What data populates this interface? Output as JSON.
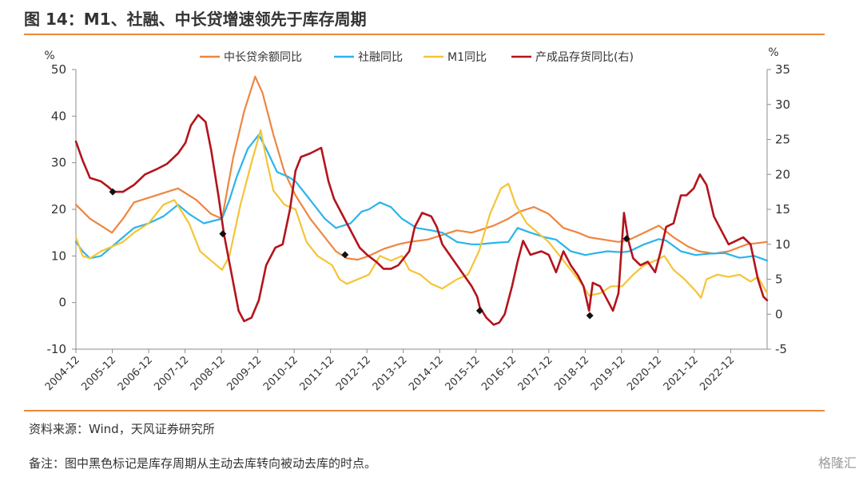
{
  "figure_title": "图 14：M1、社融、中长贷增速领先于库存周期",
  "source": "资料来源：Wind，天风证券研究所",
  "note": "备注：图中黑色标记是库存周期从主动去库转向被动去库的时点。",
  "watermark": "格隆汇",
  "colors": {
    "rule": "#e9893b",
    "中长贷余额同比": "#ee8640",
    "社融同比": "#2ab4ec",
    "M1同比": "#f5c436",
    "产成品存货同比(右)": "#b3141c"
  },
  "chart_data": {
    "type": "line",
    "left_unit": "%",
    "right_unit": "%",
    "ylim": [
      -10,
      50
    ],
    "y_ticks": [
      -10,
      0,
      10,
      20,
      30,
      40,
      50
    ],
    "y2lim": [
      -5,
      35
    ],
    "y2_ticks": [
      -5,
      0,
      5,
      10,
      15,
      20,
      25,
      30,
      35
    ],
    "x_range": [
      2004.917,
      2023.75
    ],
    "x_tick_labels": [
      "2004-12",
      "2005-12",
      "2006-12",
      "2007-12",
      "2008-12",
      "2009-12",
      "2010-12",
      "2011-12",
      "2012-12",
      "2013-12",
      "2014-12",
      "2015-12",
      "2016-12",
      "2017-12",
      "2018-12",
      "2019-12",
      "2020-12",
      "2021-12",
      "2022-12"
    ],
    "legend_position": "top",
    "grid": false,
    "series": [
      {
        "name": "中长贷余额同比",
        "axis": "left",
        "points": [
          [
            2004.917,
            21
          ],
          [
            2005.3,
            18
          ],
          [
            2005.6,
            16.5
          ],
          [
            2005.9,
            15
          ],
          [
            2006.2,
            18
          ],
          [
            2006.5,
            21.5
          ],
          [
            2006.9,
            22.5
          ],
          [
            2007.3,
            23.5
          ],
          [
            2007.7,
            24.5
          ],
          [
            2008.2,
            22
          ],
          [
            2008.6,
            19
          ],
          [
            2008.9,
            18
          ],
          [
            2009.2,
            31
          ],
          [
            2009.5,
            41
          ],
          [
            2009.8,
            48.5
          ],
          [
            2010.0,
            45
          ],
          [
            2010.3,
            36
          ],
          [
            2010.6,
            28
          ],
          [
            2010.9,
            23
          ],
          [
            2011.3,
            18
          ],
          [
            2011.7,
            14
          ],
          [
            2012.0,
            11
          ],
          [
            2012.3,
            9.5
          ],
          [
            2012.6,
            9.2
          ],
          [
            2012.9,
            10
          ],
          [
            2013.3,
            11.5
          ],
          [
            2013.7,
            12.5
          ],
          [
            2014.0,
            13
          ],
          [
            2014.5,
            13.5
          ],
          [
            2014.9,
            14.5
          ],
          [
            2015.3,
            15.5
          ],
          [
            2015.7,
            15
          ],
          [
            2015.9,
            15.5
          ],
          [
            2016.3,
            16.5
          ],
          [
            2016.7,
            18
          ],
          [
            2017.0,
            19.5
          ],
          [
            2017.4,
            20.5
          ],
          [
            2017.8,
            19
          ],
          [
            2018.2,
            16
          ],
          [
            2018.6,
            15
          ],
          [
            2018.9,
            14
          ],
          [
            2019.3,
            13.5
          ],
          [
            2019.7,
            13
          ],
          [
            2020.0,
            13.5
          ],
          [
            2020.4,
            15
          ],
          [
            2020.8,
            16.5
          ],
          [
            2021.2,
            14
          ],
          [
            2021.6,
            12
          ],
          [
            2021.9,
            11
          ],
          [
            2022.3,
            10.5
          ],
          [
            2022.7,
            11
          ],
          [
            2023.2,
            12.5
          ],
          [
            2023.75,
            13
          ]
        ]
      },
      {
        "name": "社融同比",
        "axis": "left",
        "points": [
          [
            2004.917,
            13
          ],
          [
            2005.1,
            11
          ],
          [
            2005.3,
            9.5
          ],
          [
            2005.6,
            10
          ],
          [
            2005.9,
            12
          ],
          [
            2006.2,
            14
          ],
          [
            2006.5,
            16
          ],
          [
            2006.9,
            17
          ],
          [
            2007.3,
            18.5
          ],
          [
            2007.7,
            21
          ],
          [
            2008.0,
            19
          ],
          [
            2008.4,
            17
          ],
          [
            2008.9,
            18
          ],
          [
            2009.1,
            22
          ],
          [
            2009.3,
            27
          ],
          [
            2009.6,
            33
          ],
          [
            2009.9,
            36
          ],
          [
            2010.1,
            33
          ],
          [
            2010.4,
            28
          ],
          [
            2010.7,
            27
          ],
          [
            2010.9,
            26
          ],
          [
            2011.3,
            22
          ],
          [
            2011.7,
            18
          ],
          [
            2012.0,
            16
          ],
          [
            2012.4,
            17
          ],
          [
            2012.7,
            19.5
          ],
          [
            2012.9,
            20
          ],
          [
            2013.2,
            21.5
          ],
          [
            2013.5,
            20.5
          ],
          [
            2013.8,
            18
          ],
          [
            2014.2,
            16
          ],
          [
            2014.6,
            15.5
          ],
          [
            2014.9,
            15
          ],
          [
            2015.3,
            13
          ],
          [
            2015.7,
            12.5
          ],
          [
            2015.9,
            12.5
          ],
          [
            2016.3,
            12.8
          ],
          [
            2016.7,
            13
          ],
          [
            2016.95,
            16
          ],
          [
            2017.3,
            15
          ],
          [
            2017.7,
            14
          ],
          [
            2018.0,
            13.5
          ],
          [
            2018.4,
            11
          ],
          [
            2018.8,
            10.2
          ],
          [
            2019.0,
            10.5
          ],
          [
            2019.4,
            11
          ],
          [
            2019.8,
            10.8
          ],
          [
            2020.0,
            11
          ],
          [
            2020.4,
            12.5
          ],
          [
            2020.8,
            13.6
          ],
          [
            2021.0,
            13.3
          ],
          [
            2021.4,
            11
          ],
          [
            2021.8,
            10.2
          ],
          [
            2022.2,
            10.5
          ],
          [
            2022.6,
            10.6
          ],
          [
            2023.0,
            9.6
          ],
          [
            2023.4,
            10
          ],
          [
            2023.75,
            9
          ]
        ]
      },
      {
        "name": "M1同比",
        "axis": "left",
        "points": [
          [
            2004.917,
            14
          ],
          [
            2005.1,
            10
          ],
          [
            2005.3,
            9.5
          ],
          [
            2005.6,
            11
          ],
          [
            2005.9,
            12
          ],
          [
            2006.2,
            13
          ],
          [
            2006.5,
            15
          ],
          [
            2006.9,
            17
          ],
          [
            2007.3,
            21
          ],
          [
            2007.6,
            22
          ],
          [
            2008.0,
            17
          ],
          [
            2008.3,
            11
          ],
          [
            2008.6,
            9
          ],
          [
            2008.9,
            7
          ],
          [
            2009.1,
            10
          ],
          [
            2009.4,
            21
          ],
          [
            2009.7,
            30
          ],
          [
            2009.95,
            37
          ],
          [
            2010.1,
            31
          ],
          [
            2010.3,
            24
          ],
          [
            2010.6,
            21
          ],
          [
            2010.9,
            20
          ],
          [
            2011.2,
            13
          ],
          [
            2011.5,
            10
          ],
          [
            2011.9,
            8
          ],
          [
            2012.1,
            5
          ],
          [
            2012.3,
            4
          ],
          [
            2012.6,
            5
          ],
          [
            2012.9,
            6
          ],
          [
            2013.2,
            10
          ],
          [
            2013.5,
            9
          ],
          [
            2013.8,
            10
          ],
          [
            2014.0,
            7
          ],
          [
            2014.3,
            6
          ],
          [
            2014.6,
            4
          ],
          [
            2014.9,
            3
          ],
          [
            2015.3,
            5
          ],
          [
            2015.6,
            6
          ],
          [
            2015.9,
            11
          ],
          [
            2016.2,
            19
          ],
          [
            2016.5,
            24.5
          ],
          [
            2016.7,
            25.5
          ],
          [
            2016.9,
            21
          ],
          [
            2017.2,
            17
          ],
          [
            2017.5,
            15
          ],
          [
            2017.8,
            13
          ],
          [
            2018.1,
            10
          ],
          [
            2018.4,
            7
          ],
          [
            2018.7,
            4
          ],
          [
            2018.9,
            1.5
          ],
          [
            2019.2,
            2
          ],
          [
            2019.5,
            3.5
          ],
          [
            2019.8,
            3.5
          ],
          [
            2020.1,
            6
          ],
          [
            2020.4,
            8
          ],
          [
            2020.7,
            9
          ],
          [
            2020.95,
            10
          ],
          [
            2021.2,
            7
          ],
          [
            2021.5,
            5
          ],
          [
            2021.8,
            2.5
          ],
          [
            2021.95,
            1
          ],
          [
            2022.1,
            5
          ],
          [
            2022.4,
            6
          ],
          [
            2022.7,
            5.5
          ],
          [
            2023.0,
            6
          ],
          [
            2023.3,
            4.5
          ],
          [
            2023.5,
            5.5
          ],
          [
            2023.75,
            2
          ]
        ]
      },
      {
        "name": "产成品存货同比(右)",
        "axis": "right",
        "points": [
          [
            2004.917,
            24.7
          ],
          [
            2005.1,
            22
          ],
          [
            2005.3,
            19.5
          ],
          [
            2005.6,
            19
          ],
          [
            2005.8,
            18.2
          ],
          [
            2005.95,
            17.5
          ],
          [
            2006.2,
            17.5
          ],
          [
            2006.5,
            18.5
          ],
          [
            2006.8,
            20
          ],
          [
            2007.1,
            20.7
          ],
          [
            2007.4,
            21.5
          ],
          [
            2007.7,
            23
          ],
          [
            2007.9,
            24.5
          ],
          [
            2008.05,
            27
          ],
          [
            2008.25,
            28.5
          ],
          [
            2008.45,
            27.5
          ],
          [
            2008.6,
            23.5
          ],
          [
            2008.8,
            17
          ],
          [
            2008.95,
            11.5
          ],
          [
            2009.15,
            6
          ],
          [
            2009.35,
            0.5
          ],
          [
            2009.5,
            -1
          ],
          [
            2009.7,
            -0.5
          ],
          [
            2009.9,
            2
          ],
          [
            2010.1,
            7
          ],
          [
            2010.35,
            9.5
          ],
          [
            2010.55,
            10
          ],
          [
            2010.75,
            15
          ],
          [
            2010.9,
            20.5
          ],
          [
            2011.05,
            22.5
          ],
          [
            2011.3,
            23
          ],
          [
            2011.6,
            23.8
          ],
          [
            2011.8,
            19
          ],
          [
            2011.95,
            16.5
          ],
          [
            2012.15,
            14.5
          ],
          [
            2012.45,
            11.5
          ],
          [
            2012.65,
            9.5
          ],
          [
            2012.85,
            8.5
          ],
          [
            2013.1,
            7.5
          ],
          [
            2013.3,
            6.5
          ],
          [
            2013.5,
            6.5
          ],
          [
            2013.7,
            7
          ],
          [
            2013.85,
            8
          ],
          [
            2014.0,
            9
          ],
          [
            2014.15,
            12.5
          ],
          [
            2014.35,
            14.5
          ],
          [
            2014.6,
            14
          ],
          [
            2014.75,
            12.5
          ],
          [
            2014.9,
            10
          ],
          [
            2015.1,
            8.5
          ],
          [
            2015.3,
            7
          ],
          [
            2015.5,
            5.5
          ],
          [
            2015.7,
            4
          ],
          [
            2015.85,
            2.5
          ],
          [
            2015.92,
            1
          ],
          [
            2016.1,
            -0.5
          ],
          [
            2016.3,
            -1.5
          ],
          [
            2016.45,
            -1.2
          ],
          [
            2016.6,
            0
          ],
          [
            2016.8,
            4
          ],
          [
            2016.95,
            7.5
          ],
          [
            2017.1,
            10.5
          ],
          [
            2017.3,
            8.5
          ],
          [
            2017.6,
            9
          ],
          [
            2017.8,
            8.5
          ],
          [
            2018.0,
            6
          ],
          [
            2018.2,
            9
          ],
          [
            2018.4,
            7
          ],
          [
            2018.6,
            5.5
          ],
          [
            2018.75,
            4
          ],
          [
            2018.9,
            0.5
          ],
          [
            2019.0,
            4.5
          ],
          [
            2019.2,
            4
          ],
          [
            2019.4,
            2
          ],
          [
            2019.55,
            0.5
          ],
          [
            2019.7,
            3
          ],
          [
            2019.85,
            14.5
          ],
          [
            2019.97,
            10.5
          ],
          [
            2020.1,
            8
          ],
          [
            2020.3,
            7
          ],
          [
            2020.5,
            7.5
          ],
          [
            2020.7,
            6
          ],
          [
            2020.85,
            9
          ],
          [
            2021.0,
            12.5
          ],
          [
            2021.2,
            13
          ],
          [
            2021.4,
            17
          ],
          [
            2021.55,
            17
          ],
          [
            2021.75,
            18
          ],
          [
            2021.92,
            20
          ],
          [
            2022.1,
            18.5
          ],
          [
            2022.3,
            14
          ],
          [
            2022.5,
            12
          ],
          [
            2022.7,
            10
          ],
          [
            2022.9,
            10.5
          ],
          [
            2023.1,
            11
          ],
          [
            2023.3,
            10
          ],
          [
            2023.5,
            5
          ],
          [
            2023.65,
            2.5
          ],
          [
            2023.75,
            2
          ]
        ]
      }
    ],
    "markers": {
      "series": "产成品存货同比(右)",
      "points": [
        [
          2005.92,
          17.5
        ],
        [
          2008.92,
          11.5
        ],
        [
          2012.25,
          8.5
        ],
        [
          2015.92,
          0.5
        ],
        [
          2018.92,
          -0.2
        ],
        [
          2019.92,
          10.8
        ]
      ]
    }
  }
}
